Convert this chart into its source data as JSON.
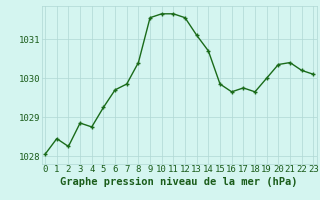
{
  "x": [
    0,
    1,
    2,
    3,
    4,
    5,
    6,
    7,
    8,
    9,
    10,
    11,
    12,
    13,
    14,
    15,
    16,
    17,
    18,
    19,
    20,
    21,
    22,
    23
  ],
  "y": [
    1028.05,
    1028.45,
    1028.25,
    1028.85,
    1028.75,
    1029.25,
    1029.7,
    1029.85,
    1030.4,
    1031.55,
    1031.65,
    1031.65,
    1031.55,
    1031.1,
    1030.7,
    1029.85,
    1029.65,
    1029.75,
    1029.65,
    1030.0,
    1030.35,
    1030.4,
    1030.2,
    1030.1
  ],
  "line_color": "#1a6b1a",
  "marker_color": "#1a6b1a",
  "bg_color": "#d4f5f0",
  "grid_color": "#b0d8d4",
  "xlabel": "Graphe pression niveau de la mer (hPa)",
  "xlabel_fontsize": 7.5,
  "ylim": [
    1027.8,
    1031.85
  ],
  "yticks": [
    1028,
    1029,
    1030,
    1031
  ],
  "xticks": [
    0,
    1,
    2,
    3,
    4,
    5,
    6,
    7,
    8,
    9,
    10,
    11,
    12,
    13,
    14,
    15,
    16,
    17,
    18,
    19,
    20,
    21,
    22,
    23
  ],
  "tick_fontsize": 6.5,
  "marker_size": 3,
  "line_width": 1.0,
  "text_color": "#1a5c1a"
}
